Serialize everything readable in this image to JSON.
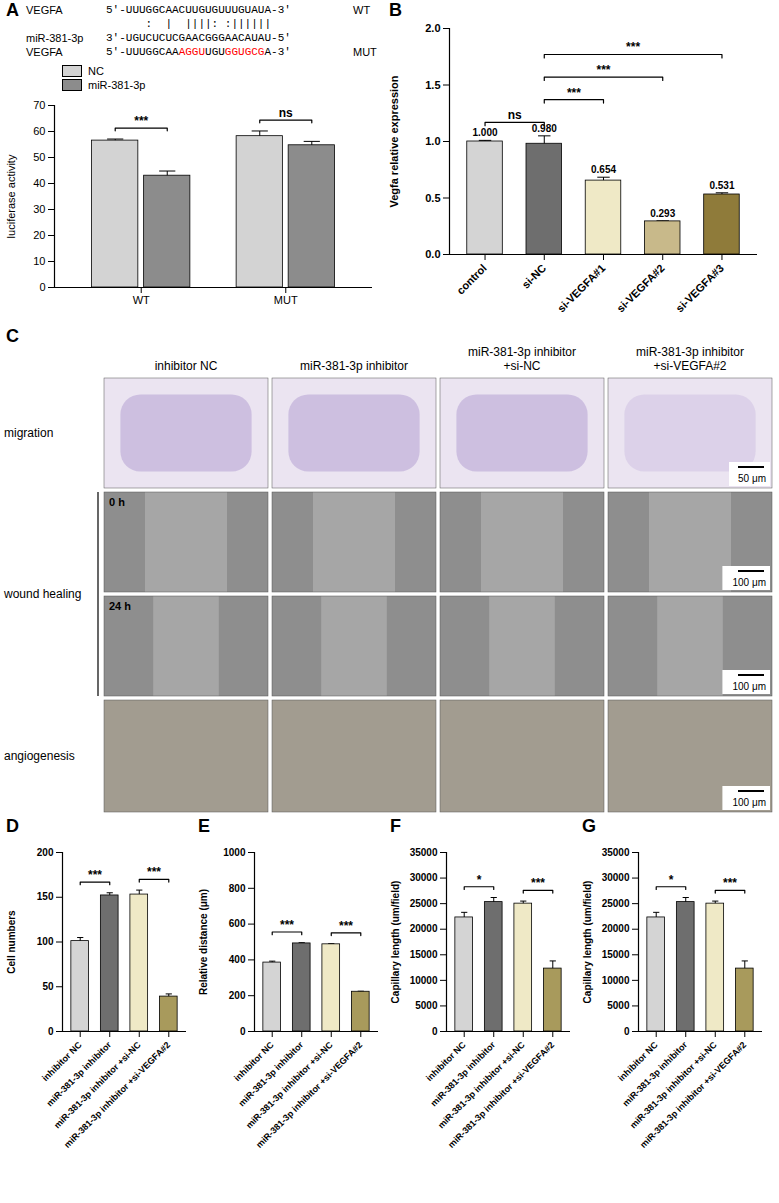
{
  "chart_data": [
    {
      "panel": "A",
      "type": "bar",
      "y_label": "luciferase activity",
      "categories": [
        "WT",
        "MUT"
      ],
      "series": [
        {
          "name": "NC",
          "color": "#d3d3d3",
          "values": [
            56.5,
            58.2
          ],
          "errors": [
            0.6,
            2.0
          ]
        },
        {
          "name": "miR-381-3p",
          "color": "#8c8c8c",
          "values": [
            43.0,
            54.7
          ],
          "errors": [
            1.8,
            1.5
          ]
        }
      ],
      "ylim": [
        0,
        70
      ],
      "yticks": [
        0,
        10,
        20,
        30,
        40,
        50,
        60,
        70
      ],
      "legend": "top-left",
      "significance": [
        {
          "category": "WT",
          "label": "***"
        },
        {
          "category": "MUT",
          "label": "ns"
        }
      ]
    },
    {
      "panel": "B",
      "type": "bar",
      "y_label": "Vegfa relative expression",
      "categories": [
        "control",
        "si-NC",
        "si-VEGFA#1",
        "si-VEGFA#2",
        "si-VEGFA#3"
      ],
      "values": [
        1.0,
        0.98,
        0.654,
        0.293,
        0.531
      ],
      "value_labels": [
        "1.000",
        "0.980",
        "0.654",
        "0.293",
        "0.531"
      ],
      "errors": [
        0.01,
        0.07,
        0.03,
        0.005,
        0.015
      ],
      "colors": [
        "#d4d4d4",
        "#6e6e6e",
        "#efe9c6",
        "#c8b98a",
        "#8f7b3a"
      ],
      "ylim": [
        0,
        2
      ],
      "yticks": [
        {
          "value": 0,
          "label": "0.0"
        },
        0.5,
        {
          "value": 1,
          "label": "1.0"
        },
        1.5,
        {
          "value": 2,
          "label": "2.0"
        }
      ],
      "data_labels": true,
      "significance": [
        {
          "from": "control",
          "to": "si-NC",
          "label": "ns"
        },
        {
          "from": "si-NC",
          "to": "si-VEGFA#1",
          "label": "***"
        },
        {
          "from": "si-NC",
          "to": "si-VEGFA#2",
          "label": "***"
        },
        {
          "from": "si-NC",
          "to": "si-VEGFA#3",
          "label": "***"
        }
      ]
    },
    {
      "panel": "D",
      "type": "bar",
      "y_label": "Cell numbers",
      "categories": [
        "inhibitor NC",
        "miR-381-3p inhibitor",
        "miR-381-3p inhibitor +si-NC",
        "miR-381-3p inhibitor +si-VEGFA#2"
      ],
      "values": [
        101,
        152,
        153,
        39
      ],
      "errors": [
        4,
        3,
        5,
        3
      ],
      "colors": [
        "#d4d4d4",
        "#6e6e6e",
        "#efe9c6",
        "#a89a5c"
      ],
      "ylim": [
        0,
        200
      ],
      "yticks": [
        0,
        50,
        100,
        150,
        200
      ],
      "significance": [
        {
          "from": "inhibitor NC",
          "to": "miR-381-3p inhibitor",
          "label": "***"
        },
        {
          "from": "miR-381-3p inhibitor +si-NC",
          "to": "miR-381-3p inhibitor +si-VEGFA#2",
          "label": "***"
        }
      ]
    },
    {
      "panel": "E",
      "type": "bar",
      "y_label": "Relative distance (μm)",
      "categories": [
        "inhibitor NC",
        "miR-381-3p inhibitor",
        "miR-381-3p inhibitor +si-NC",
        "miR-381-3p inhibitor +si-VEGFA#2"
      ],
      "values": [
        385,
        492,
        487,
        222
      ],
      "errors": [
        8,
        4,
        4,
        3
      ],
      "colors": [
        "#d4d4d4",
        "#6e6e6e",
        "#efe9c6",
        "#a89a5c"
      ],
      "ylim": [
        0,
        1000
      ],
      "yticks": [
        0,
        200,
        400,
        600,
        800,
        1000
      ],
      "significance": [
        {
          "from": "inhibitor NC",
          "to": "miR-381-3p inhibitor",
          "label": "***"
        },
        {
          "from": "miR-381-3p inhibitor +si-NC",
          "to": "miR-381-3p inhibitor +si-VEGFA#2",
          "label": "***"
        }
      ]
    },
    {
      "panel": "F",
      "type": "bar",
      "y_label": "Capillary length (um/field)",
      "categories": [
        "inhibitor NC",
        "miR-381-3p inhibitor",
        "miR-381-3p inhibitor +si-NC",
        "miR-381-3p inhibitor +si-VEGFA#2"
      ],
      "values": [
        22300,
        25300,
        25000,
        12300
      ],
      "errors": [
        1000,
        900,
        500,
        1500
      ],
      "colors": [
        "#d4d4d4",
        "#6e6e6e",
        "#efe9c6",
        "#a89a5c"
      ],
      "ylim": [
        0,
        35000
      ],
      "yticks": [
        0,
        5000,
        10000,
        15000,
        20000,
        25000,
        30000,
        35000
      ],
      "significance": [
        {
          "from": "inhibitor NC",
          "to": "miR-381-3p inhibitor",
          "label": "*"
        },
        {
          "from": "miR-381-3p inhibitor +si-NC",
          "to": "miR-381-3p inhibitor +si-VEGFA#2",
          "label": "***"
        }
      ]
    },
    {
      "panel": "G",
      "type": "bar",
      "y_label": "Capillary length (um/field)",
      "categories": [
        "inhibitor NC",
        "miR-381-3p inhibitor",
        "miR-381-3p inhibitor +si-NC",
        "miR-381-3p inhibitor +si-VEGFA#2"
      ],
      "values": [
        22300,
        25300,
        25000,
        12300
      ],
      "errors": [
        1000,
        900,
        500,
        1500
      ],
      "colors": [
        "#d4d4d4",
        "#6e6e6e",
        "#efe9c6",
        "#a89a5c"
      ],
      "ylim": [
        0,
        35000
      ],
      "yticks": [
        0,
        5000,
        10000,
        15000,
        20000,
        25000,
        30000,
        35000
      ],
      "significance": [
        {
          "from": "inhibitor NC",
          "to": "miR-381-3p inhibitor",
          "label": "*"
        },
        {
          "from": "miR-381-3p inhibitor +si-NC",
          "to": "miR-381-3p inhibitor +si-VEGFA#2",
          "label": "***"
        }
      ]
    }
  ],
  "panel_A_alignment": {
    "rows": [
      {
        "name": "VEGFA",
        "sequence": [
          {
            "text": "5'-UUUGGCAACUUGUGUUUGUAUA-3'"
          }
        ],
        "tag": "WT"
      },
      {
        "sequence": [
          {
            "text": "      :  |  ||||: :||||||"
          }
        ]
      },
      {
        "name": "miR-381-3p",
        "sequence": [
          {
            "text": "3'-UGUCUCUCGAACGGGAACAUAU-5'"
          }
        ]
      },
      {
        "name": "VEGFA",
        "sequence": [
          {
            "text": "5'-UUUGGCAA"
          },
          {
            "text": "AGGU",
            "color": "#ff0000"
          },
          {
            "text": "UGU"
          },
          {
            "text": "GGUGCG",
            "color": "#ff0000"
          },
          {
            "text": "A-3'"
          }
        ],
        "tag": "MUT"
      }
    ]
  },
  "panel_C": {
    "panel": "C",
    "columns": [
      "inhibitor NC",
      "miR-381-3p inhibitor",
      "miR-381-3p inhibitor +si-NC",
      "miR-381-3p inhibitor +si-VEGFA#2"
    ],
    "rows": [
      {
        "label": "migration",
        "scale_bar": "50 μm"
      },
      {
        "label": "wound healing",
        "subrows": [
          {
            "time": "0 h",
            "scale_bar": "100 μm"
          },
          {
            "time": "24 h",
            "scale_bar": "100 μm"
          }
        ]
      },
      {
        "label": "angiogenesis",
        "scale_bar": "100 μm"
      }
    ]
  }
}
